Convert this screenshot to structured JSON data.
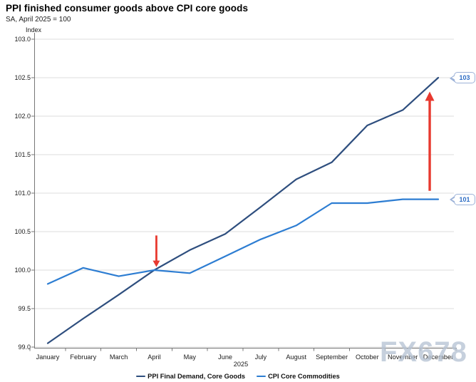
{
  "header": {
    "title": "PPI finished consumer goods above CPI core goods",
    "subtitle": "SA, April 2025 = 100"
  },
  "watermark": {
    "text": "FX678"
  },
  "chart_data": {
    "type": "line",
    "title": "PPI finished consumer goods above CPI core goods",
    "subtitle": "SA, April 2025 = 100",
    "ylabel": "Index",
    "x_year_label": "2025",
    "categories": [
      "January",
      "February",
      "March",
      "April",
      "May",
      "June",
      "July",
      "August",
      "September",
      "October",
      "November",
      "December"
    ],
    "ylim": [
      99.0,
      103.0
    ],
    "ytick_step": 0.5,
    "grid": true,
    "legend_position": "bottom",
    "series": [
      {
        "name": "PPI Final Demand, Core Goods",
        "color": "#2e4e7e",
        "values": [
          99.05,
          99.37,
          99.68,
          100.0,
          100.26,
          100.47,
          100.82,
          101.18,
          101.4,
          101.88,
          102.08,
          102.5
        ]
      },
      {
        "name": "CPI Core Commodities",
        "color": "#2d7dd2",
        "values": [
          99.82,
          100.03,
          99.92,
          100.0,
          99.96,
          100.18,
          100.4,
          100.58,
          100.87,
          100.87,
          100.92,
          100.92
        ]
      }
    ],
    "callouts": [
      {
        "label": "103",
        "series": 0
      },
      {
        "label": "101",
        "series": 1
      }
    ],
    "annotations": [
      {
        "shape": "down-arrow",
        "month_index": 3.06,
        "value_from": 100.45,
        "value_to": 100.04,
        "color": "#e8392f"
      },
      {
        "shape": "up-arrow",
        "month_index": 10.76,
        "value_from": 101.03,
        "value_to": 102.32,
        "color": "#e8392f"
      }
    ],
    "colors": {
      "grid": "#dedede",
      "axis": "#777777",
      "tick_label": "#1a1a1a"
    }
  }
}
